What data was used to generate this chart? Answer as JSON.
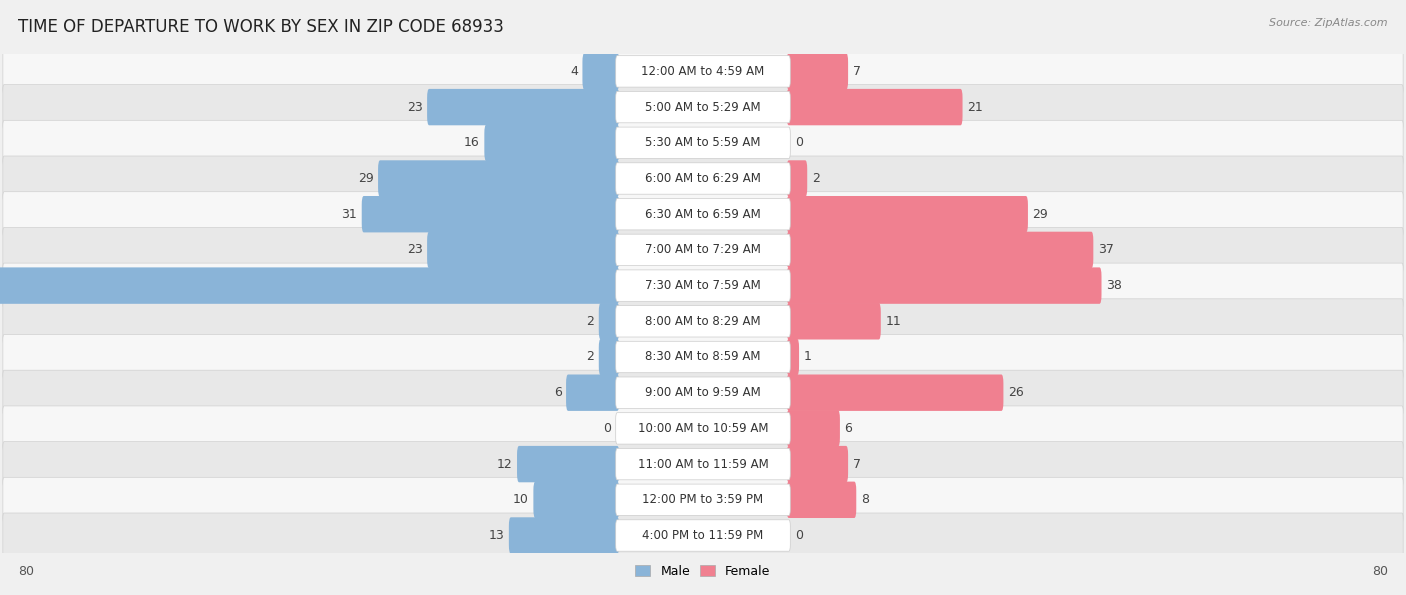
{
  "title": "TIME OF DEPARTURE TO WORK BY SEX IN ZIP CODE 68933",
  "source": "Source: ZipAtlas.com",
  "categories": [
    "12:00 AM to 4:59 AM",
    "5:00 AM to 5:29 AM",
    "5:30 AM to 5:59 AM",
    "6:00 AM to 6:29 AM",
    "6:30 AM to 6:59 AM",
    "7:00 AM to 7:29 AM",
    "7:30 AM to 7:59 AM",
    "8:00 AM to 8:29 AM",
    "8:30 AM to 8:59 AM",
    "9:00 AM to 9:59 AM",
    "10:00 AM to 10:59 AM",
    "11:00 AM to 11:59 AM",
    "12:00 PM to 3:59 PM",
    "4:00 PM to 11:59 PM"
  ],
  "male": [
    4,
    23,
    16,
    29,
    31,
    23,
    80,
    2,
    2,
    6,
    0,
    12,
    10,
    13
  ],
  "female": [
    7,
    21,
    0,
    2,
    29,
    37,
    38,
    11,
    1,
    26,
    6,
    7,
    8,
    0
  ],
  "male_color": "#8ab4d8",
  "female_color": "#f08090",
  "max_val": 80,
  "bg_color": "#f0f0f0",
  "row_bg_light": "#f7f7f7",
  "row_bg_dark": "#e8e8e8",
  "row_border_color": "#d0d0d0",
  "label_bg": "#ffffff",
  "title_fontsize": 12,
  "source_fontsize": 8,
  "bar_label_fontsize": 9,
  "cat_label_fontsize": 8.5
}
